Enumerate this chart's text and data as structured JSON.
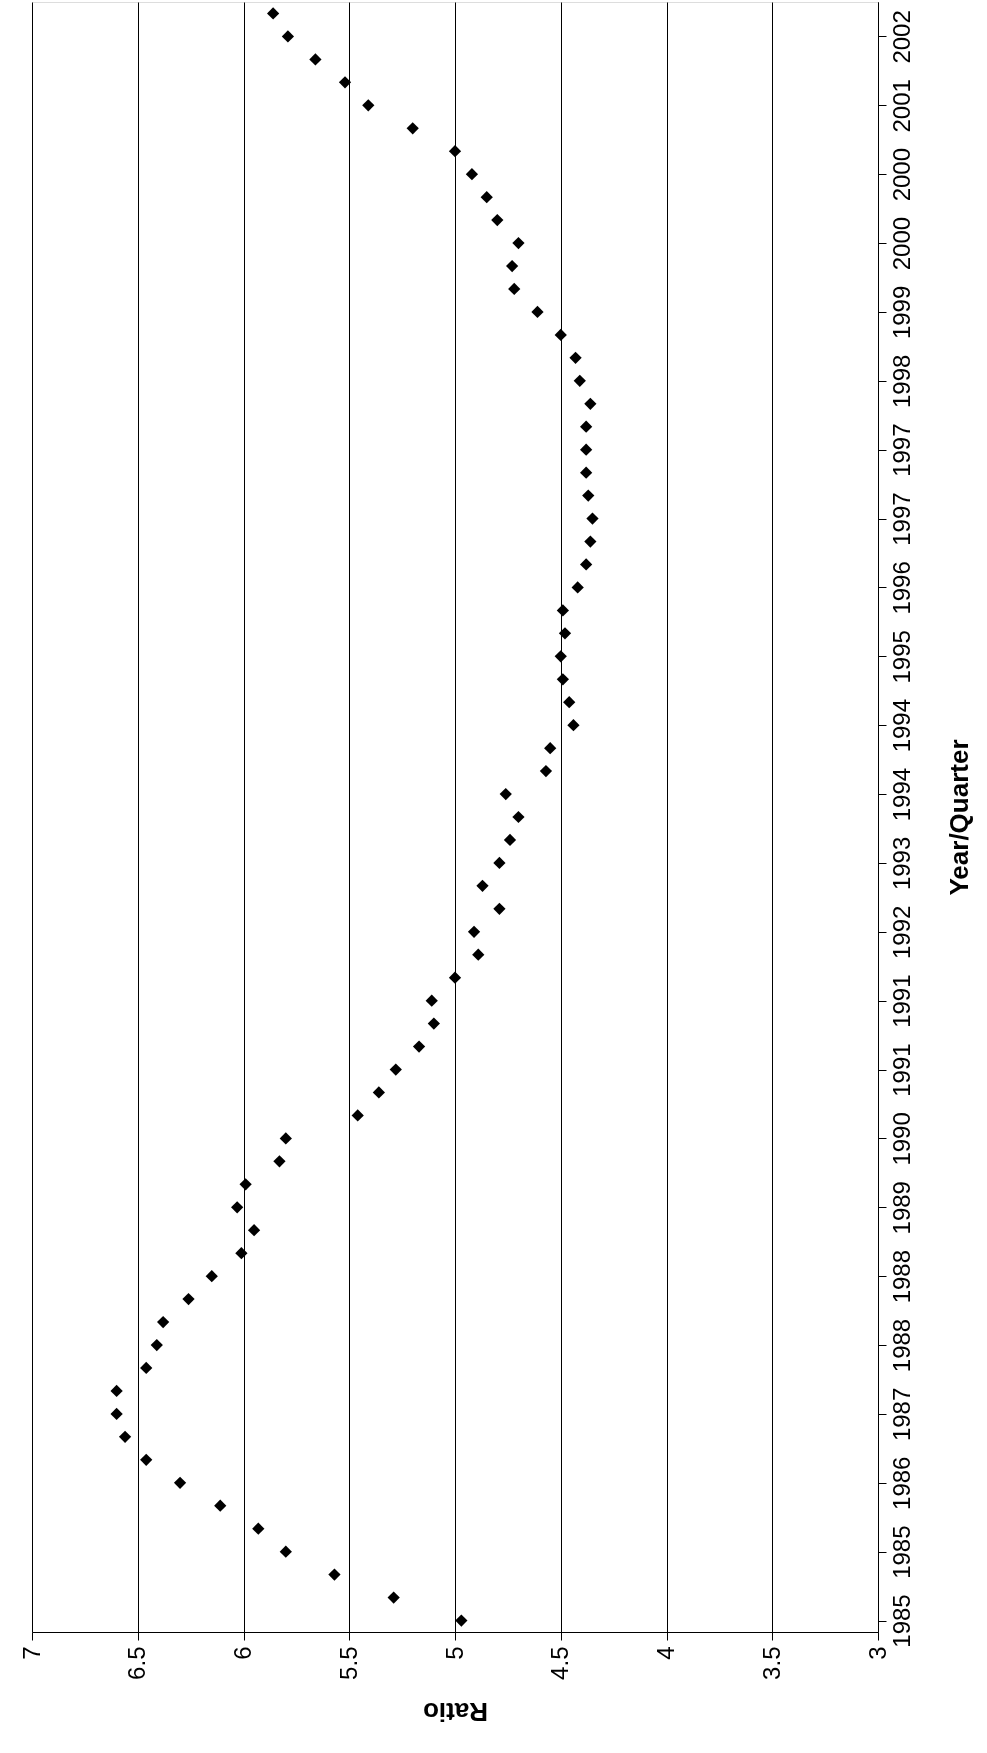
{
  "chart_data": {
    "type": "scatter",
    "orientation": "horizontal",
    "xlabel": "Ratio",
    "ylabel": "Year/Quarter",
    "categories": [
      null,
      "2002",
      null,
      null,
      "2001",
      null,
      null,
      "2000",
      null,
      null,
      "2000",
      null,
      null,
      "1999",
      null,
      null,
      "1998",
      null,
      null,
      "1997",
      null,
      null,
      "1997",
      null,
      null,
      "1996",
      null,
      null,
      "1995",
      null,
      null,
      "1994",
      null,
      null,
      "1994",
      null,
      null,
      "1993",
      null,
      null,
      "1992",
      null,
      null,
      "1991",
      null,
      null,
      "1991",
      null,
      null,
      "1990",
      null,
      null,
      "1989",
      null,
      null,
      "1988",
      null,
      null,
      "1988",
      null,
      null,
      "1987",
      null,
      null,
      "1986",
      null,
      null,
      "1985",
      null,
      null,
      "1985"
    ],
    "series": [
      {
        "color": "#000000",
        "values": [
          5.86,
          5.79,
          5.66,
          5.52,
          5.41,
          5.2,
          5.0,
          4.92,
          4.85,
          4.8,
          4.7,
          4.73,
          4.72,
          4.61,
          4.5,
          4.43,
          4.41,
          4.36,
          4.38,
          4.38,
          4.38,
          4.37,
          4.35,
          4.36,
          4.38,
          4.42,
          4.49,
          4.48,
          4.5,
          4.49,
          4.46,
          4.44,
          4.55,
          4.57,
          4.76,
          4.7,
          4.74,
          4.79,
          4.87,
          4.79,
          4.91,
          4.89,
          5.0,
          5.11,
          5.1,
          5.17,
          5.28,
          5.36,
          5.46,
          5.8,
          5.83,
          5.99,
          6.03,
          5.95,
          6.01,
          6.15,
          6.26,
          6.38,
          6.41,
          6.46,
          6.6,
          6.6,
          6.56,
          6.46,
          6.3,
          6.11,
          5.93,
          5.8,
          5.57,
          5.29,
          4.97
        ]
      }
    ],
    "xlim": [
      7,
      3
    ],
    "xticks": [
      7,
      6.5,
      6,
      5.5,
      5,
      4.5,
      4,
      3.5,
      3
    ],
    "grid": "x",
    "marker": "diamond"
  }
}
